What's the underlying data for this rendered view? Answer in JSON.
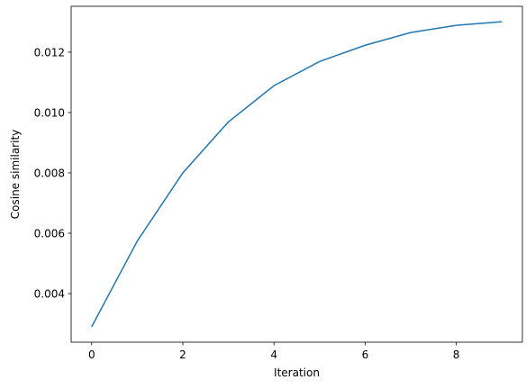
{
  "chart_data": {
    "type": "line",
    "x_label": "Iteration",
    "y_label": "Cosine similarity",
    "x": [
      0,
      1,
      2,
      3,
      4,
      5,
      6,
      7,
      8,
      9
    ],
    "series": [
      {
        "color": "#1f77b4",
        "values": [
          0.0029,
          0.00574,
          0.008,
          0.00969,
          0.01089,
          0.01169,
          0.01223,
          0.01265,
          0.01289,
          0.01301
        ]
      }
    ],
    "xlim": [
      -0.45,
      9.45
    ],
    "xticks": [
      0,
      2,
      4,
      6,
      8
    ],
    "ylim": [
      0.00239,
      0.01352
    ],
    "yticks": [
      0.004,
      0.006,
      0.008,
      {
        "value": 0.01,
        "label": "0.010"
      },
      0.012
    ]
  }
}
